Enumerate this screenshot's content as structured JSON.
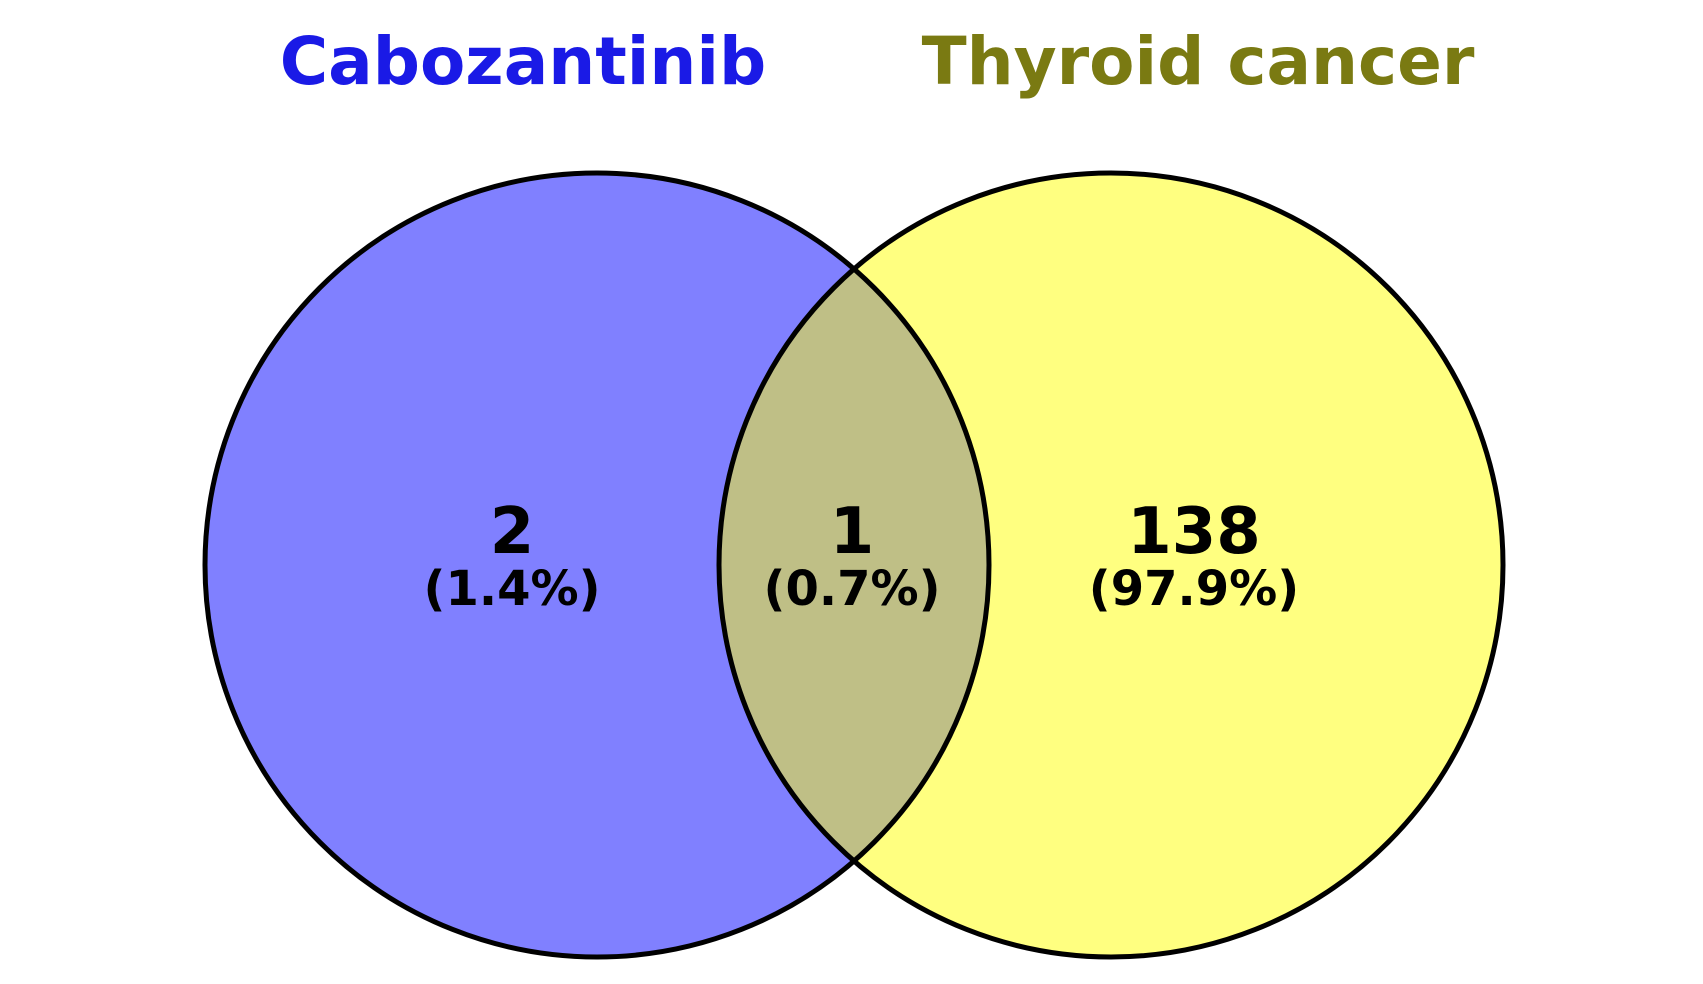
{
  "sets": [
    {
      "name": "Cabozantinib",
      "color": "#8080FF",
      "title_color": "#1A1AE6"
    },
    {
      "name": "Thyroid cancer",
      "color": "#FFFF80",
      "title_color": "#7A7A12"
    }
  ],
  "overlap_color": "#BFBF86",
  "outline_color": "#000000",
  "regions": {
    "left_only": {
      "count": "2",
      "percent": "(1.4%)"
    },
    "both": {
      "count": "1",
      "percent": "(0.7%)"
    },
    "right_only": {
      "count": "138",
      "percent": "(97.9%)"
    }
  }
}
